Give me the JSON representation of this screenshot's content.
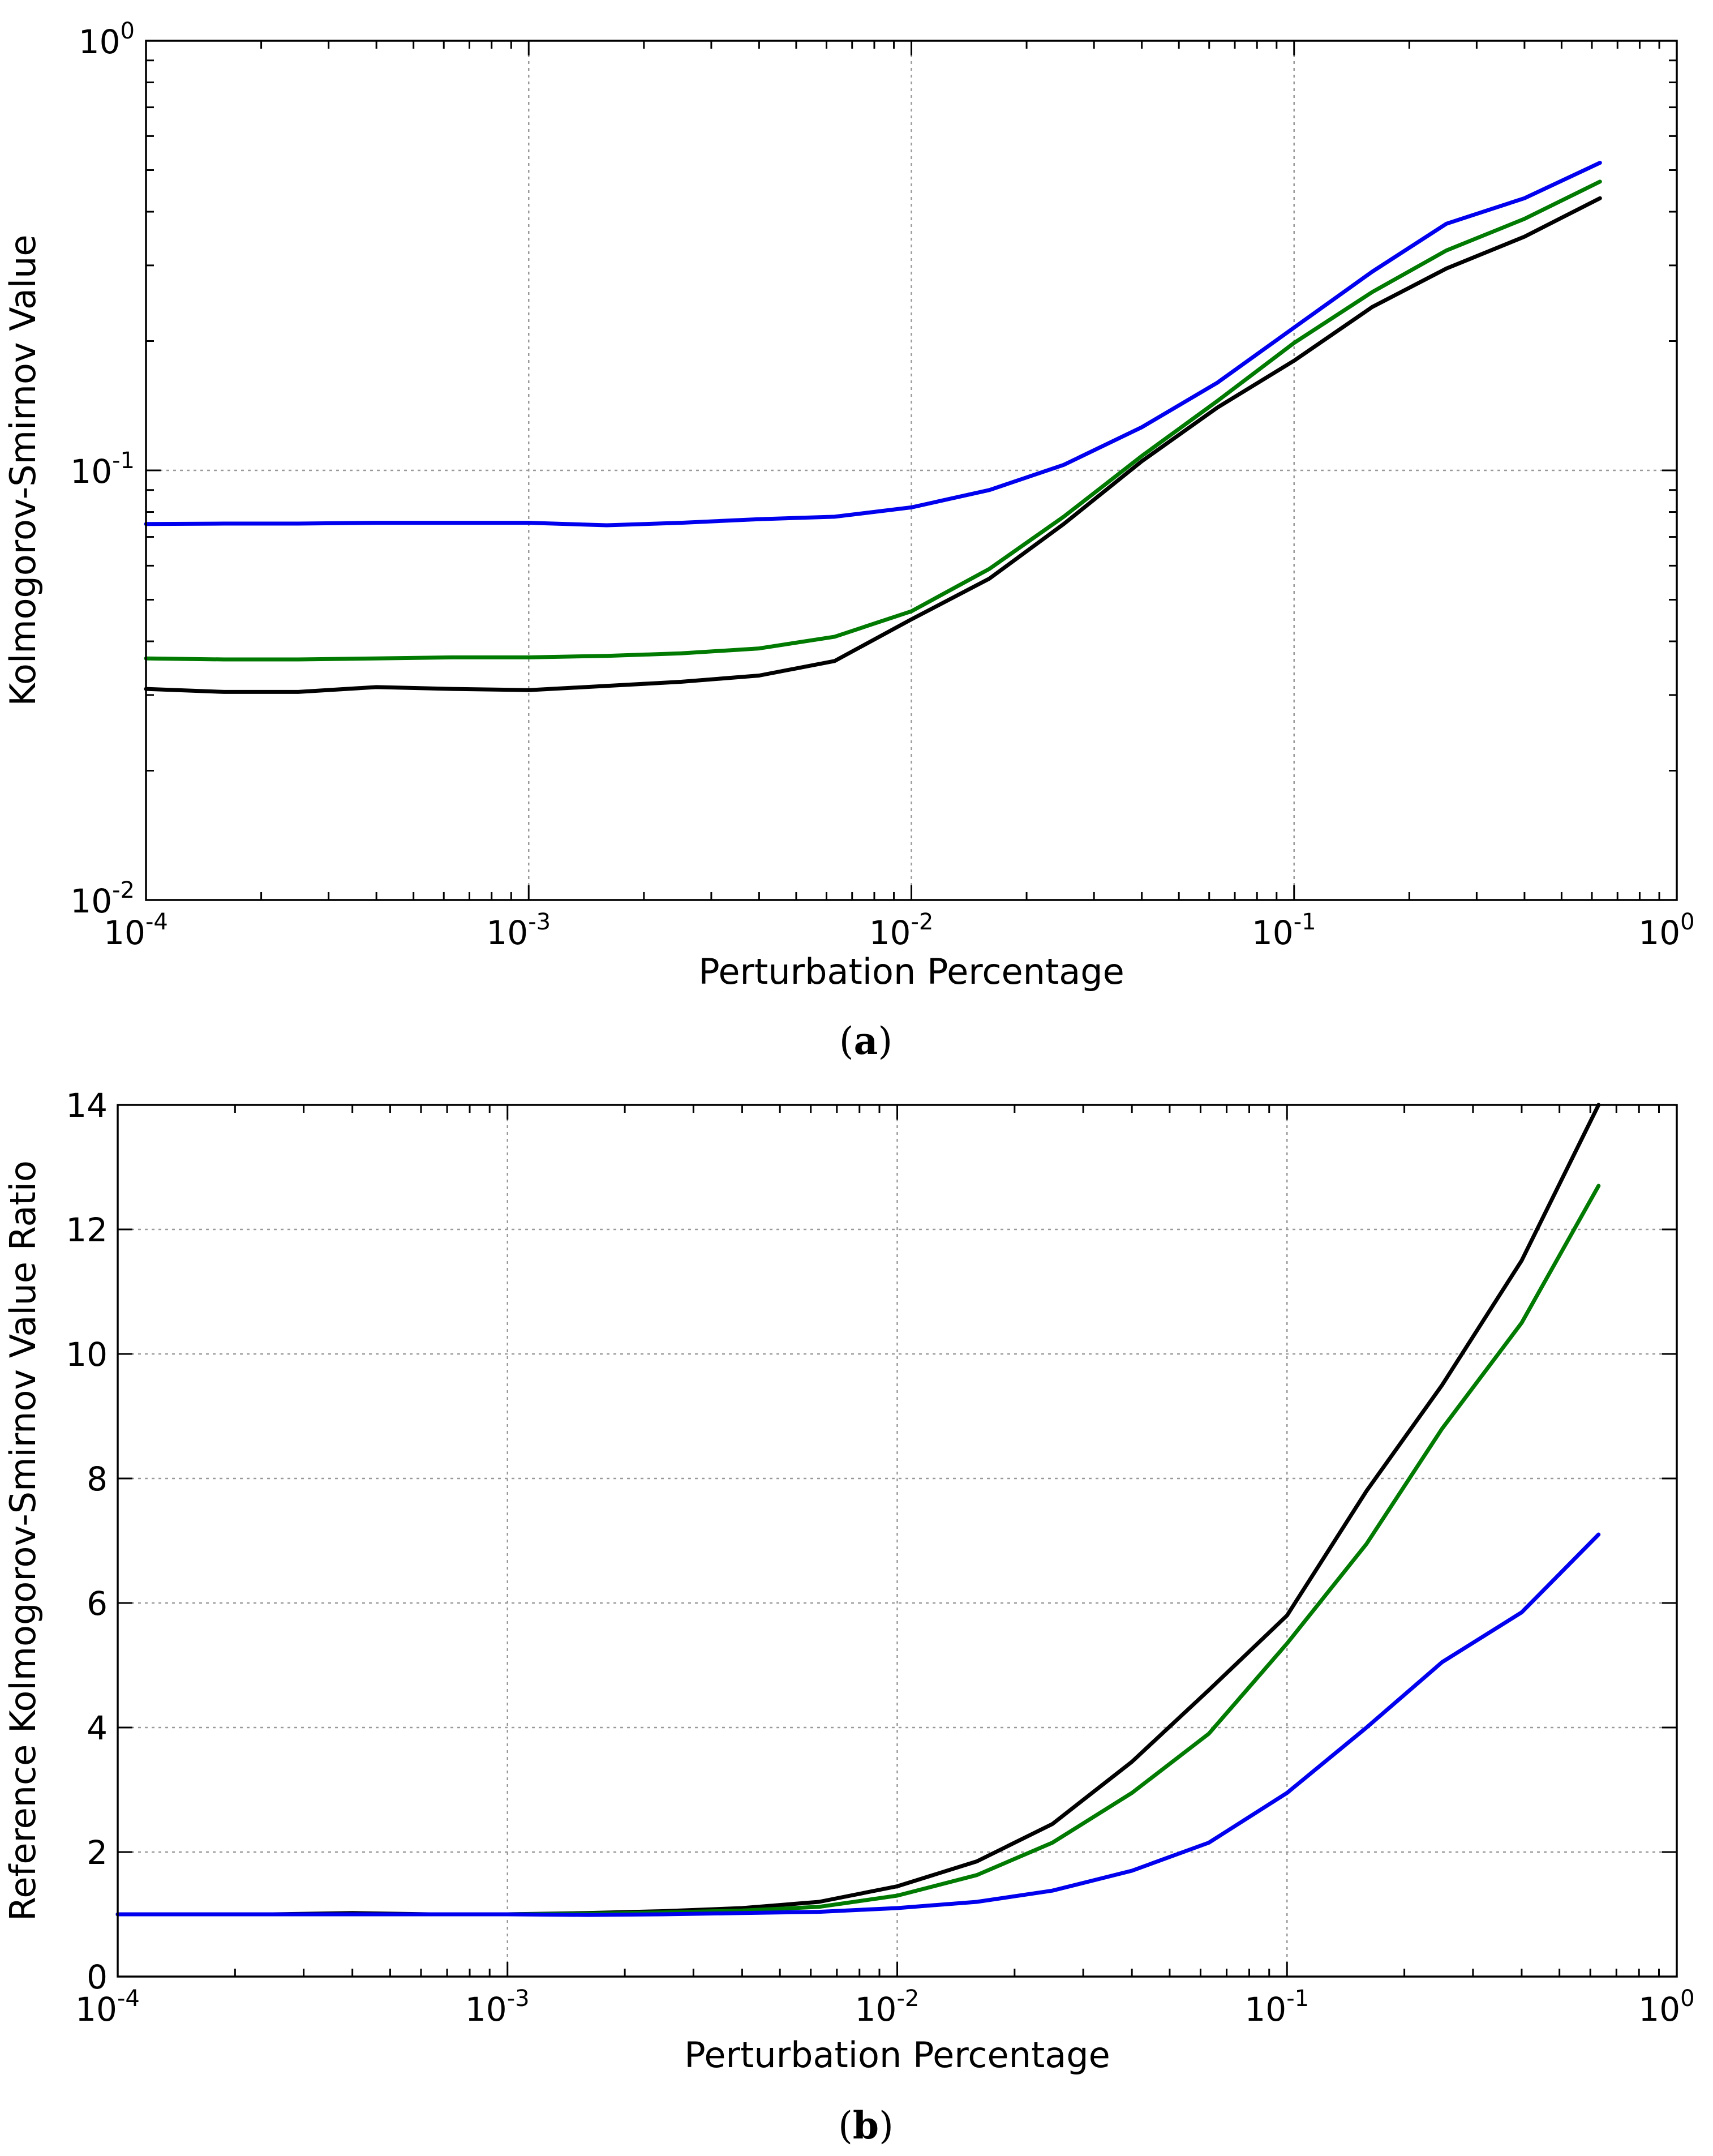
{
  "chart_data": [
    {
      "id": "a",
      "type": "line",
      "caption_letter": "a",
      "xlabel": "Perturbation Percentage",
      "ylabel": "Kolmogorov-Smirnov Value",
      "xscale": "log",
      "yscale": "log",
      "xlim": [
        0.0001,
        1
      ],
      "ylim": [
        0.01,
        1
      ],
      "grid": true,
      "x_ticks": [
        {
          "value": 0.0001,
          "base": "10",
          "exp": "-4"
        },
        {
          "value": 0.001,
          "base": "10",
          "exp": "-3"
        },
        {
          "value": 0.01,
          "base": "10",
          "exp": "-2"
        },
        {
          "value": 0.1,
          "base": "10",
          "exp": "-1"
        },
        {
          "value": 1,
          "base": "10",
          "exp": "0"
        }
      ],
      "y_ticks": [
        {
          "value": 0.01,
          "base": "10",
          "exp": "-2"
        },
        {
          "value": 0.1,
          "base": "10",
          "exp": "-1"
        },
        {
          "value": 1,
          "base": "10",
          "exp": "0"
        }
      ],
      "x": [
        0.0001,
        0.00016,
        0.00025,
        0.0004,
        0.00063,
        0.001,
        0.0016,
        0.0025,
        0.004,
        0.0063,
        0.01,
        0.016,
        0.025,
        0.04,
        0.063,
        0.1,
        0.16,
        0.25,
        0.4,
        0.63
      ],
      "series": [
        {
          "name": "blue",
          "color": "#0000ee",
          "values": [
            0.075,
            0.0752,
            0.0752,
            0.0755,
            0.0755,
            0.0755,
            0.0745,
            0.0755,
            0.077,
            0.078,
            0.082,
            0.09,
            0.103,
            0.126,
            0.16,
            0.215,
            0.29,
            0.375,
            0.43,
            0.52
          ]
        },
        {
          "name": "green",
          "color": "#007a00",
          "values": [
            0.0365,
            0.0363,
            0.0363,
            0.0365,
            0.0367,
            0.0367,
            0.037,
            0.0375,
            0.0385,
            0.041,
            0.047,
            0.059,
            0.078,
            0.108,
            0.145,
            0.198,
            0.26,
            0.325,
            0.385,
            0.47
          ]
        },
        {
          "name": "black",
          "color": "#000000",
          "values": [
            0.031,
            0.0305,
            0.0305,
            0.0313,
            0.031,
            0.0308,
            0.0315,
            0.0322,
            0.0333,
            0.036,
            0.045,
            0.056,
            0.075,
            0.105,
            0.14,
            0.18,
            0.24,
            0.295,
            0.35,
            0.43
          ]
        }
      ]
    },
    {
      "id": "b",
      "type": "line",
      "caption_letter": "b",
      "xlabel": "Perturbation Percentage",
      "ylabel": "Reference Kolmogorov-Smirnov Value Ratio",
      "xscale": "log",
      "yscale": "linear",
      "xlim": [
        0.0001,
        1
      ],
      "ylim": [
        0,
        14
      ],
      "grid": true,
      "x_ticks": [
        {
          "value": 0.0001,
          "base": "10",
          "exp": "-4"
        },
        {
          "value": 0.001,
          "base": "10",
          "exp": "-3"
        },
        {
          "value": 0.01,
          "base": "10",
          "exp": "-2"
        },
        {
          "value": 0.1,
          "base": "10",
          "exp": "-1"
        },
        {
          "value": 1,
          "base": "10",
          "exp": "0"
        }
      ],
      "y_ticks": [
        {
          "value": 0,
          "label": "0"
        },
        {
          "value": 2,
          "label": "2"
        },
        {
          "value": 4,
          "label": "4"
        },
        {
          "value": 6,
          "label": "6"
        },
        {
          "value": 8,
          "label": "8"
        },
        {
          "value": 10,
          "label": "10"
        },
        {
          "value": 12,
          "label": "12"
        },
        {
          "value": 14,
          "label": "14"
        }
      ],
      "x": [
        0.0001,
        0.00016,
        0.00025,
        0.0004,
        0.00063,
        0.001,
        0.0016,
        0.0025,
        0.004,
        0.0063,
        0.01,
        0.016,
        0.025,
        0.04,
        0.063,
        0.1,
        0.16,
        0.25,
        0.4,
        0.63
      ],
      "series": [
        {
          "name": "black",
          "color": "#000000",
          "values": [
            1.0,
            1.0,
            1.0,
            1.02,
            1.0,
            1.0,
            1.02,
            1.05,
            1.1,
            1.2,
            1.45,
            1.85,
            2.45,
            3.45,
            4.6,
            5.8,
            7.8,
            9.5,
            11.5,
            14.0
          ]
        },
        {
          "name": "green",
          "color": "#007a00",
          "values": [
            1.0,
            1.0,
            1.0,
            1.0,
            1.0,
            1.0,
            1.01,
            1.03,
            1.06,
            1.12,
            1.3,
            1.63,
            2.15,
            2.95,
            3.9,
            5.35,
            6.95,
            8.8,
            10.5,
            12.7
          ]
        },
        {
          "name": "blue",
          "color": "#0000ee",
          "values": [
            1.0,
            1.0,
            1.0,
            1.0,
            1.0,
            1.0,
            0.99,
            1.0,
            1.02,
            1.04,
            1.1,
            1.2,
            1.38,
            1.7,
            2.15,
            2.95,
            4.0,
            5.05,
            5.85,
            7.1
          ]
        }
      ]
    }
  ]
}
